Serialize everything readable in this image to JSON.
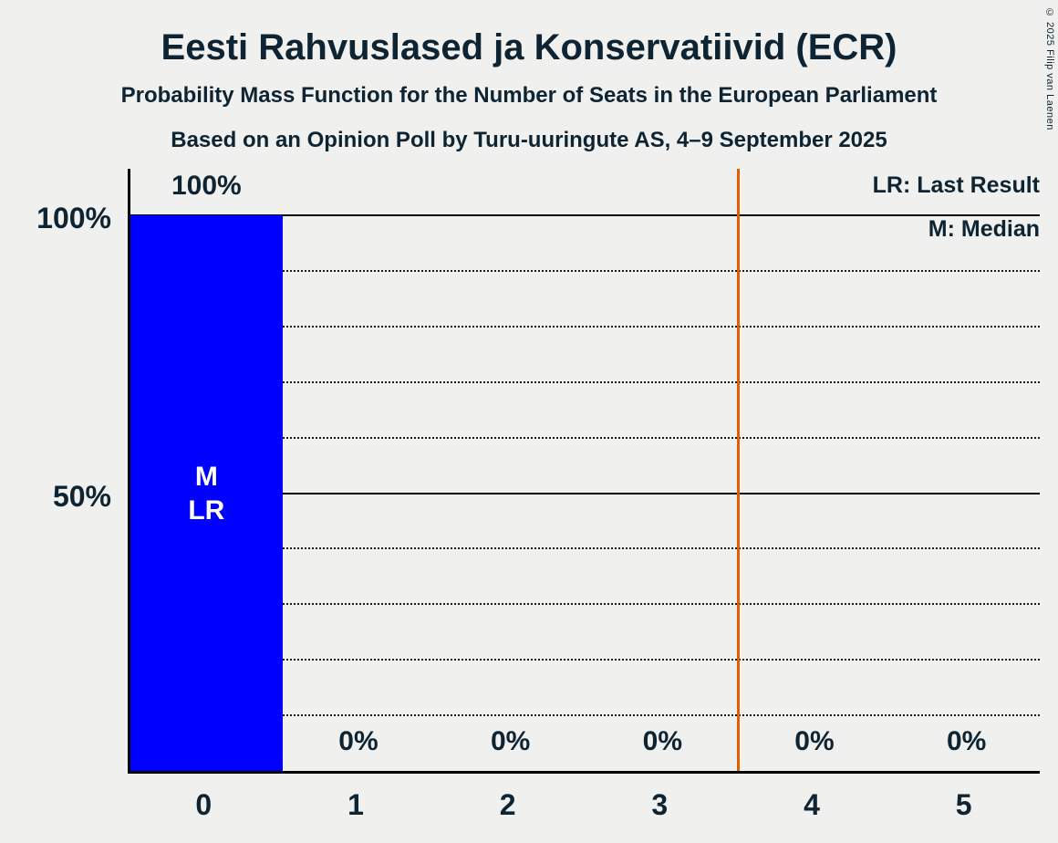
{
  "title": "Eesti Rahvuslased ja Konservatiivid (ECR)",
  "subtitles": [
    "Probability Mass Function for the Number of Seats in the European Parliament",
    "Based on an Opinion Poll by Turu-uuringute AS, 4–9 September 2025"
  ],
  "copyright": "© 2025 Filip van Laenen",
  "legend": {
    "last_result": "LR: Last Result",
    "median": "M: Median"
  },
  "y_axis": {
    "ticks": [
      {
        "label": "100%",
        "value": 100
      },
      {
        "label": "50%",
        "value": 50
      }
    ]
  },
  "colors": {
    "background": "#f0f0ee",
    "text": "#0e2433",
    "bar": "#0000ff",
    "bar_text": "#ffffff",
    "marker_line": "#e06000",
    "axis": "#000000"
  },
  "chart_data": {
    "type": "bar",
    "title": "Eesti Rahvuslased ja Konservatiivid (ECR)",
    "categories": [
      "0",
      "1",
      "2",
      "3",
      "4",
      "5"
    ],
    "values": [
      100,
      0,
      0,
      0,
      0,
      0
    ],
    "value_labels": [
      "100%",
      "0%",
      "0%",
      "0%",
      "0%",
      "0%"
    ],
    "ylim": [
      0,
      100
    ],
    "gridlines": {
      "dotted": [
        10,
        20,
        30,
        40,
        60,
        70,
        80,
        90
      ],
      "solid": [
        50,
        100
      ]
    },
    "median_seats": 0,
    "last_result_seats": 0,
    "bar_annotations": [
      {
        "index": 0,
        "lines": [
          "M",
          "LR"
        ]
      }
    ],
    "vertical_line_x": 3.5,
    "legend_position": "top-right",
    "grid": true
  }
}
